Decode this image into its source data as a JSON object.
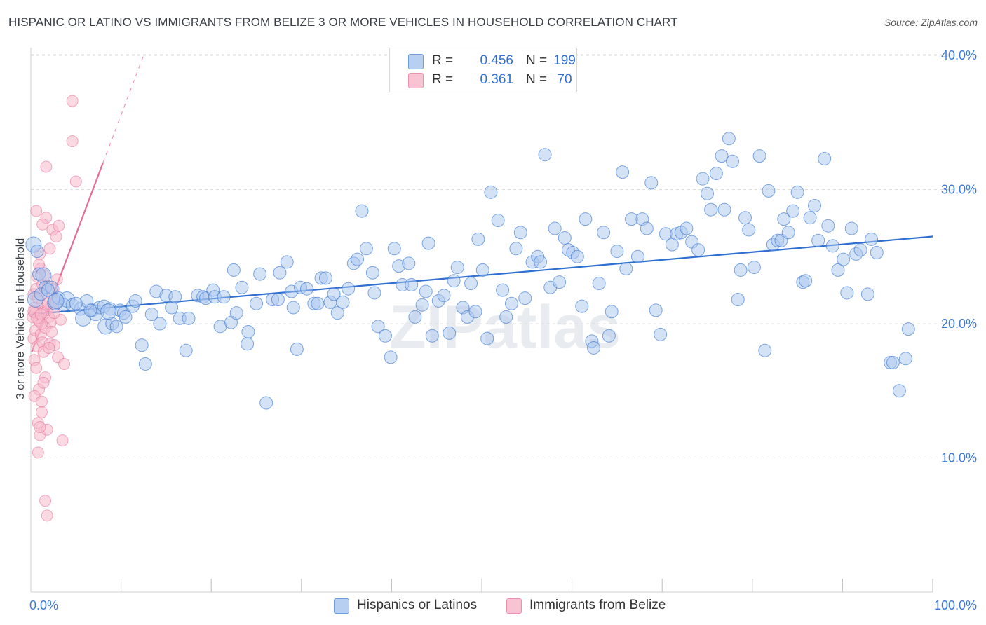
{
  "title": "HISPANIC OR LATINO VS IMMIGRANTS FROM BELIZE 3 OR MORE VEHICLES IN HOUSEHOLD CORRELATION CHART",
  "source": "Source: ZipAtlas.com",
  "watermark": "ZIPatlas",
  "colors": {
    "blue": "#2f6fd1",
    "blue_fill": "#a9c5ee",
    "pink": "#e66b96",
    "pink_fill": "#f6b9cc",
    "axis_text": "#3d7ad6",
    "grid": "#dcdcdc"
  },
  "legend": {
    "rows": [
      {
        "swatch": "blue",
        "r_label": "R =",
        "r_value": "0.456",
        "n_label": "N =",
        "n_value": "199"
      },
      {
        "swatch": "pink",
        "r_label": "R =",
        "r_value": "0.361",
        "n_label": "N =",
        "n_value": "70"
      }
    ]
  },
  "bottom_legend": [
    {
      "label": "Hispanics or Latinos",
      "swatch": "blue"
    },
    {
      "label": "Immigrants from Belize",
      "swatch": "pink"
    }
  ],
  "chart_data": {
    "type": "scatter",
    "title": "HISPANIC OR LATINO VS IMMIGRANTS FROM BELIZE 3 OR MORE VEHICLES IN HOUSEHOLD CORRELATION CHART",
    "xlabel": "",
    "ylabel": "3 or more Vehicles in Household",
    "xlim": [
      0,
      100
    ],
    "ylim": [
      0,
      42
    ],
    "x_tick_labels": [
      {
        "value": 0,
        "label": "0.0%"
      },
      {
        "value": 100,
        "label": "100.0%"
      }
    ],
    "x_minor_ticks": [
      10,
      20,
      30,
      40,
      50,
      60,
      70,
      80,
      90,
      100
    ],
    "y_ticks": [
      {
        "value": 10,
        "label": "10.0%"
      },
      {
        "value": 20,
        "label": "20.0%"
      },
      {
        "value": 30,
        "label": "30.0%"
      },
      {
        "value": 40,
        "label": "40.0%"
      }
    ],
    "grid": "horizontal dashed",
    "series": [
      {
        "name": "Hispanics or Latinos",
        "color": "blue",
        "R": 0.456,
        "N": 199,
        "trend": {
          "x": [
            0,
            100
          ],
          "y": [
            20.7,
            26.5
          ],
          "style": "solid"
        },
        "points": [
          [
            0.3,
            25.9
          ],
          [
            0.7,
            25.4
          ],
          [
            0.9,
            23.7
          ],
          [
            1.4,
            23.6
          ],
          [
            1.6,
            22.7
          ],
          [
            2.3,
            22.7
          ],
          [
            2.7,
            21.6
          ],
          [
            3.1,
            21.9
          ],
          [
            3.7,
            21.4
          ],
          [
            4.0,
            21.8
          ],
          [
            4.6,
            21.4
          ],
          [
            5.5,
            21.1
          ],
          [
            5.8,
            20.4
          ],
          [
            6.2,
            21.7
          ],
          [
            6.8,
            21.0
          ],
          [
            7.2,
            20.8
          ],
          [
            7.6,
            21.2
          ],
          [
            8.1,
            21.3
          ],
          [
            8.3,
            19.8
          ],
          [
            8.8,
            21.1
          ],
          [
            9.0,
            20.0
          ],
          [
            9.5,
            19.8
          ],
          [
            9.9,
            21.0
          ],
          [
            10.3,
            20.8
          ],
          [
            10.5,
            20.5
          ],
          [
            11.3,
            21.3
          ],
          [
            11.6,
            21.7
          ],
          [
            12.3,
            18.4
          ],
          [
            12.7,
            17.0
          ],
          [
            13.4,
            20.7
          ],
          [
            13.9,
            22.4
          ],
          [
            14.3,
            20.0
          ],
          [
            15.0,
            22.1
          ],
          [
            15.6,
            21.2
          ],
          [
            16.0,
            22.0
          ],
          [
            16.5,
            20.4
          ],
          [
            17.2,
            18.0
          ],
          [
            17.5,
            20.4
          ],
          [
            18.5,
            22.1
          ],
          [
            19.1,
            22.0
          ],
          [
            19.4,
            21.9
          ],
          [
            20.2,
            22.5
          ],
          [
            20.4,
            22.0
          ],
          [
            21.0,
            19.8
          ],
          [
            21.4,
            22.0
          ],
          [
            22.2,
            20.1
          ],
          [
            22.5,
            24.0
          ],
          [
            22.8,
            20.8
          ],
          [
            23.4,
            22.7
          ],
          [
            24.0,
            18.5
          ],
          [
            24.1,
            19.4
          ],
          [
            25.0,
            21.5
          ],
          [
            25.4,
            23.7
          ],
          [
            26.1,
            14.1
          ],
          [
            26.8,
            21.8
          ],
          [
            27.4,
            21.8
          ],
          [
            27.6,
            23.8
          ],
          [
            28.4,
            24.6
          ],
          [
            28.9,
            22.4
          ],
          [
            29.1,
            21.2
          ],
          [
            29.5,
            18.1
          ],
          [
            29.9,
            22.7
          ],
          [
            30.6,
            22.6
          ],
          [
            31.4,
            21.5
          ],
          [
            31.8,
            21.5
          ],
          [
            32.2,
            23.4
          ],
          [
            32.7,
            23.4
          ],
          [
            33.2,
            21.6
          ],
          [
            33.6,
            22.2
          ],
          [
            34.0,
            20.8
          ],
          [
            34.6,
            21.6
          ],
          [
            35.2,
            22.6
          ],
          [
            35.8,
            24.5
          ],
          [
            36.2,
            24.8
          ],
          [
            36.7,
            28.4
          ],
          [
            37.2,
            25.6
          ],
          [
            37.9,
            23.8
          ],
          [
            38.1,
            22.3
          ],
          [
            38.5,
            19.8
          ],
          [
            39.3,
            19.1
          ],
          [
            39.9,
            17.5
          ],
          [
            40.3,
            25.6
          ],
          [
            40.8,
            24.3
          ],
          [
            41.2,
            22.9
          ],
          [
            41.9,
            24.5
          ],
          [
            42.2,
            22.9
          ],
          [
            42.6,
            20.5
          ],
          [
            43.4,
            21.4
          ],
          [
            43.8,
            22.4
          ],
          [
            44.1,
            26.0
          ],
          [
            44.5,
            19.1
          ],
          [
            45.2,
            21.7
          ],
          [
            45.8,
            22.1
          ],
          [
            46.4,
            19.3
          ],
          [
            46.9,
            23.2
          ],
          [
            47.3,
            24.2
          ],
          [
            47.9,
            21.2
          ],
          [
            48.4,
            20.5
          ],
          [
            48.8,
            23.0
          ],
          [
            49.3,
            20.9
          ],
          [
            49.6,
            26.3
          ],
          [
            50.1,
            24.0
          ],
          [
            50.6,
            18.9
          ],
          [
            51.0,
            29.8
          ],
          [
            51.8,
            27.7
          ],
          [
            52.3,
            22.5
          ],
          [
            52.7,
            20.5
          ],
          [
            53.3,
            21.5
          ],
          [
            53.8,
            25.6
          ],
          [
            54.3,
            26.8
          ],
          [
            54.8,
            21.9
          ],
          [
            55.6,
            24.6
          ],
          [
            56.2,
            25.0
          ],
          [
            56.5,
            24.6
          ],
          [
            57.0,
            32.6
          ],
          [
            57.6,
            22.7
          ],
          [
            58.1,
            27.1
          ],
          [
            58.6,
            23.1
          ],
          [
            59.2,
            26.4
          ],
          [
            59.6,
            25.5
          ],
          [
            60.1,
            25.3
          ],
          [
            60.6,
            25.0
          ],
          [
            61.1,
            21.3
          ],
          [
            61.5,
            27.8
          ],
          [
            62.2,
            18.7
          ],
          [
            62.4,
            18.2
          ],
          [
            63.0,
            23.0
          ],
          [
            63.5,
            26.8
          ],
          [
            64.1,
            19.1
          ],
          [
            64.4,
            20.9
          ],
          [
            65.0,
            25.4
          ],
          [
            65.6,
            31.3
          ],
          [
            66.0,
            24.1
          ],
          [
            66.6,
            27.8
          ],
          [
            67.3,
            25.0
          ],
          [
            67.8,
            27.8
          ],
          [
            68.3,
            27.1
          ],
          [
            68.8,
            30.5
          ],
          [
            69.3,
            21.0
          ],
          [
            69.8,
            19.2
          ],
          [
            70.4,
            26.7
          ],
          [
            71.1,
            25.9
          ],
          [
            71.6,
            26.7
          ],
          [
            72.1,
            26.8
          ],
          [
            72.7,
            27.1
          ],
          [
            73.3,
            26.1
          ],
          [
            74.0,
            25.5
          ],
          [
            74.5,
            30.8
          ],
          [
            75.0,
            29.7
          ],
          [
            75.4,
            28.5
          ],
          [
            76.0,
            31.2
          ],
          [
            76.6,
            32.5
          ],
          [
            76.9,
            28.5
          ],
          [
            77.4,
            33.8
          ],
          [
            77.8,
            32.1
          ],
          [
            78.4,
            21.8
          ],
          [
            78.7,
            24.0
          ],
          [
            79.2,
            27.9
          ],
          [
            79.6,
            27.0
          ],
          [
            80.2,
            24.2
          ],
          [
            80.8,
            32.5
          ],
          [
            81.4,
            18.0
          ],
          [
            81.8,
            29.9
          ],
          [
            82.3,
            25.9
          ],
          [
            82.8,
            26.2
          ],
          [
            83.2,
            26.2
          ],
          [
            83.5,
            27.8
          ],
          [
            84.0,
            26.8
          ],
          [
            84.5,
            28.4
          ],
          [
            85.0,
            29.8
          ],
          [
            85.6,
            23.1
          ],
          [
            85.9,
            23.2
          ],
          [
            86.4,
            27.9
          ],
          [
            86.9,
            28.8
          ],
          [
            87.3,
            26.2
          ],
          [
            88.0,
            32.3
          ],
          [
            88.4,
            27.3
          ],
          [
            88.9,
            25.8
          ],
          [
            89.5,
            24.0
          ],
          [
            90.1,
            24.8
          ],
          [
            90.5,
            22.3
          ],
          [
            91.0,
            27.1
          ],
          [
            91.5,
            25.2
          ],
          [
            92.0,
            25.5
          ],
          [
            92.8,
            22.2
          ],
          [
            93.2,
            26.3
          ],
          [
            93.8,
            25.3
          ],
          [
            95.3,
            17.1
          ],
          [
            95.6,
            17.1
          ],
          [
            96.3,
            15.0
          ],
          [
            97.0,
            17.4
          ],
          [
            97.3,
            19.6
          ],
          [
            0.5,
            21.8
          ],
          [
            1.1,
            22.2
          ],
          [
            1.9,
            22.5
          ],
          [
            2.8,
            21.7
          ],
          [
            5.0,
            21.5
          ],
          [
            6.6,
            21.0
          ],
          [
            8.6,
            20.9
          ]
        ]
      },
      {
        "name": "Immigrants from Belize",
        "color": "pink",
        "R": 0.361,
        "N": 70,
        "trend": {
          "x": [
            0.1,
            8.0
          ],
          "y": [
            17.9,
            32.0
          ],
          "style": "solid",
          "extended": {
            "x": [
              8.0,
              12.5
            ],
            "y": [
              32.0,
              40.0
            ],
            "style": "dashed"
          }
        },
        "points": [
          [
            0.2,
            20.5
          ],
          [
            0.3,
            22.2
          ],
          [
            0.3,
            18.9
          ],
          [
            0.4,
            17.3
          ],
          [
            0.4,
            21.2
          ],
          [
            0.5,
            19.5
          ],
          [
            0.5,
            20.8
          ],
          [
            0.6,
            22.6
          ],
          [
            0.6,
            16.7
          ],
          [
            0.7,
            18.3
          ],
          [
            0.7,
            23.5
          ],
          [
            0.8,
            21.9
          ],
          [
            0.8,
            12.6
          ],
          [
            0.9,
            20.2
          ],
          [
            0.9,
            15.1
          ],
          [
            1.0,
            25.2
          ],
          [
            1.0,
            11.7
          ],
          [
            1.1,
            19.2
          ],
          [
            1.1,
            24.1
          ],
          [
            1.2,
            21.4
          ],
          [
            1.2,
            13.4
          ],
          [
            1.3,
            22.9
          ],
          [
            1.3,
            18.6
          ],
          [
            1.4,
            17.9
          ],
          [
            1.4,
            20.9
          ],
          [
            1.5,
            23.6
          ],
          [
            1.5,
            22.3
          ],
          [
            1.6,
            19.7
          ],
          [
            1.6,
            16.0
          ],
          [
            1.7,
            27.9
          ],
          [
            1.8,
            21.0
          ],
          [
            1.8,
            12.1
          ],
          [
            1.9,
            22.8
          ],
          [
            2.0,
            20.5
          ],
          [
            2.1,
            18.5
          ],
          [
            2.1,
            25.6
          ],
          [
            2.2,
            20.1
          ],
          [
            2.3,
            19.4
          ],
          [
            2.4,
            27.0
          ],
          [
            2.5,
            22.6
          ],
          [
            2.6,
            18.4
          ],
          [
            2.7,
            21.7
          ],
          [
            2.8,
            26.5
          ],
          [
            2.9,
            23.3
          ],
          [
            3.0,
            17.5
          ],
          [
            3.1,
            27.3
          ],
          [
            3.3,
            20.3
          ],
          [
            3.5,
            11.3
          ],
          [
            3.7,
            17.0
          ],
          [
            0.6,
            28.4
          ],
          [
            0.9,
            24.4
          ],
          [
            1.3,
            27.4
          ],
          [
            1.7,
            31.7
          ],
          [
            2.0,
            18.2
          ],
          [
            0.4,
            14.6
          ],
          [
            0.8,
            10.4
          ],
          [
            1.0,
            12.3
          ],
          [
            1.2,
            14.2
          ],
          [
            1.4,
            15.6
          ],
          [
            1.6,
            6.8
          ],
          [
            1.8,
            5.7
          ],
          [
            4.6,
            36.6
          ],
          [
            4.6,
            33.6
          ],
          [
            5.0,
            30.6
          ],
          [
            1.2,
            20.0
          ],
          [
            2.6,
            20.8
          ],
          [
            0.3,
            20.9
          ],
          [
            0.7,
            20.4
          ],
          [
            1.1,
            20.7
          ],
          [
            1.9,
            21.5
          ]
        ]
      }
    ]
  },
  "axis_labels": {
    "ylabel": "3 or more Vehicles in Household",
    "x_left": "0.0%",
    "x_right": "100.0%"
  }
}
